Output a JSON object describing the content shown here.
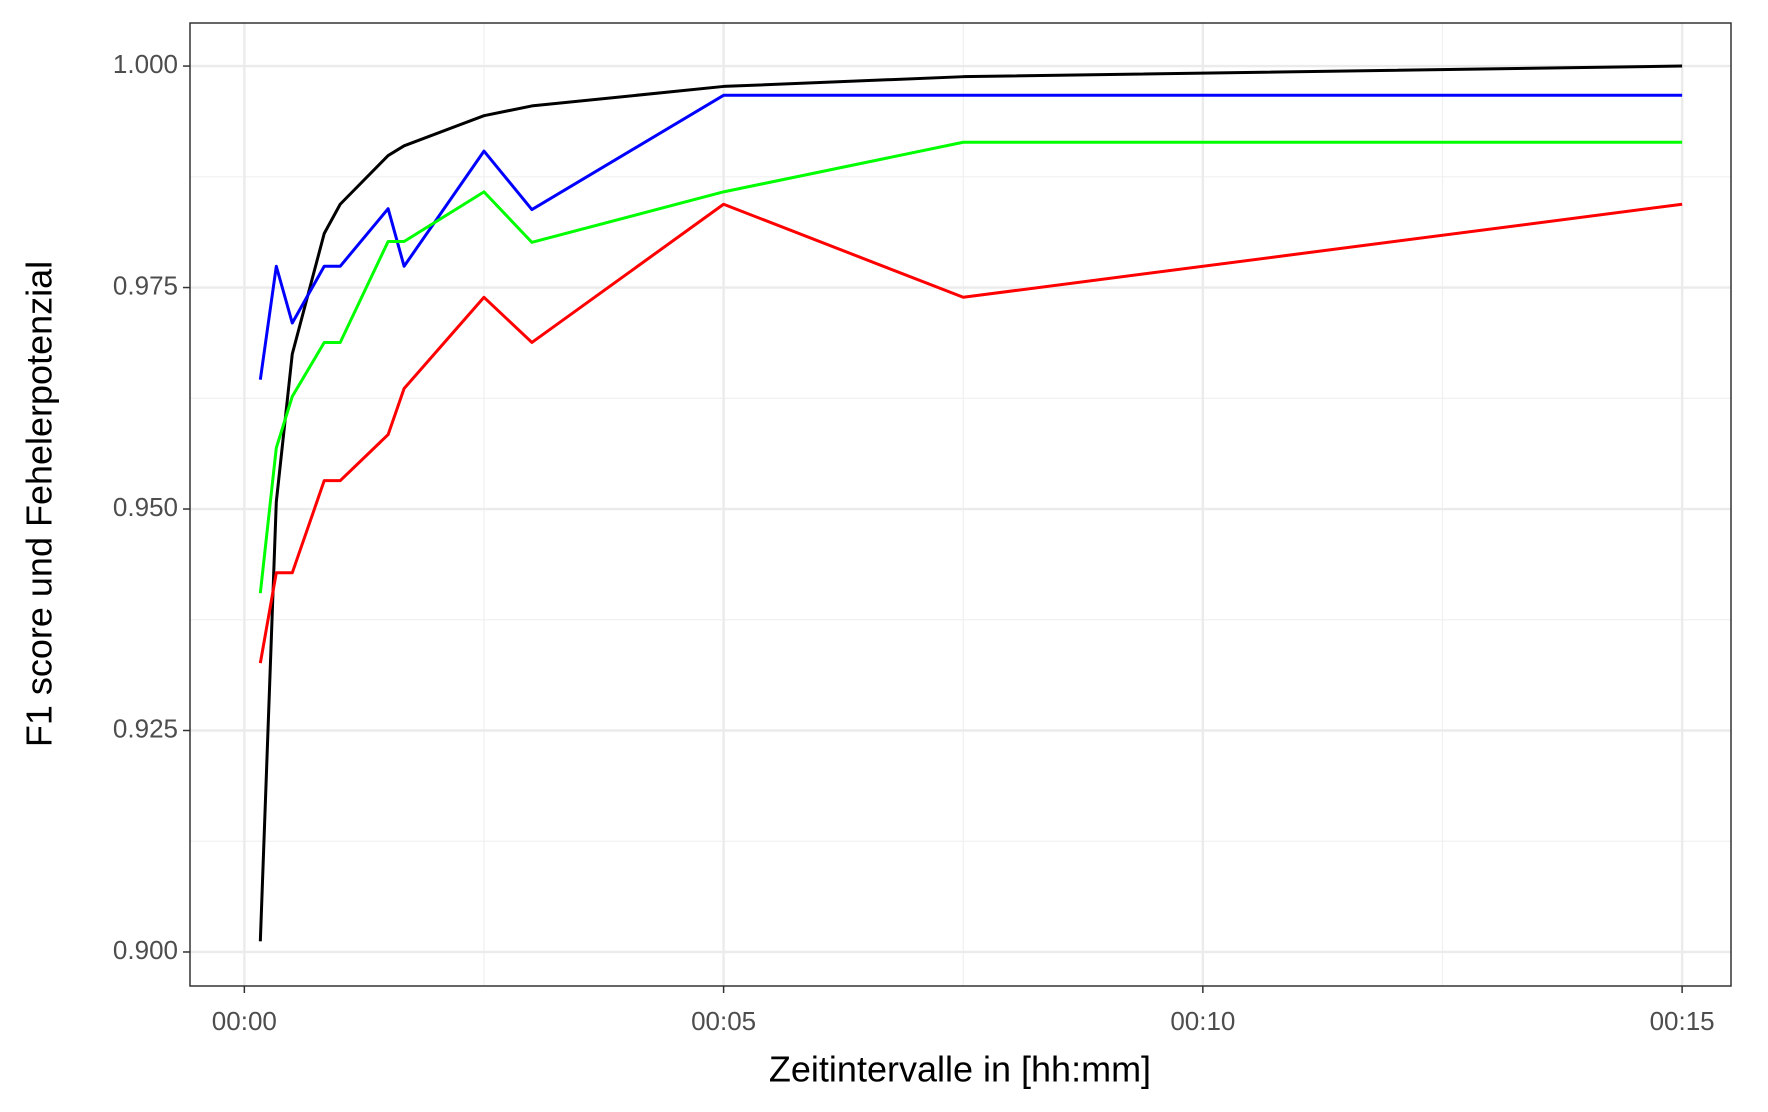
{
  "chart_data": {
    "type": "line",
    "x_label": "Zeitintervalle in [hh:mm]",
    "y_label": "F1 score und Fehelerpotenzial",
    "x": [
      0.1667,
      0.3333,
      0.5,
      0.8333,
      1,
      1.5,
      1.6667,
      2.5,
      3,
      5,
      7.5,
      15
    ],
    "series": [
      {
        "color": "#000000",
        "values": [
          0.9012,
          0.9508,
          0.9675,
          0.9811,
          0.9844,
          0.9899,
          0.991,
          0.9944,
          0.9955,
          0.9977,
          0.9988,
          1.0
        ]
      },
      {
        "color": "#0000ff",
        "values": [
          0.9646,
          0.9774,
          0.971,
          0.9774,
          0.9774,
          0.9839,
          0.9774,
          0.9904,
          0.9838,
          0.9967,
          0.9967,
          0.9967
        ]
      },
      {
        "color": "#00ff00",
        "values": [
          0.9405,
          0.9569,
          0.9627,
          0.9688,
          0.9688,
          0.9802,
          0.9802,
          0.9858,
          0.9801,
          0.9858,
          0.9914,
          0.9914
        ]
      },
      {
        "color": "#ff0000",
        "values": [
          0.9326,
          0.9428,
          0.9428,
          0.9532,
          0.9532,
          0.9584,
          0.9636,
          0.9739,
          0.9688,
          0.9844,
          0.9739,
          0.9844
        ]
      }
    ],
    "xlim": [
      -0.567,
      15.51
    ],
    "ylim": [
      0.89616,
      1.00486
    ],
    "xticks": [
      {
        "value": 0,
        "label": "00:00"
      },
      {
        "value": 5,
        "label": "00:05"
      },
      {
        "value": 10,
        "label": "00:10"
      },
      {
        "value": 15,
        "label": "00:15"
      }
    ],
    "yticks": [
      {
        "value": 0.9,
        "label": "0.900"
      },
      {
        "value": 0.925,
        "label": "0.925"
      },
      {
        "value": 0.95,
        "label": "0.950"
      },
      {
        "value": 0.975,
        "label": "0.975"
      },
      {
        "value": 1.0,
        "label": "1.000"
      }
    ],
    "xminorticks": [
      2.5,
      7.5,
      12.5
    ],
    "yminorticks": [
      0.9125,
      0.9375,
      0.9625,
      0.9875
    ],
    "grid": true
  }
}
